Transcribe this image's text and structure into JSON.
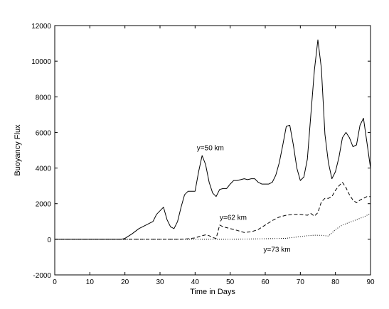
{
  "chart_data": {
    "type": "line",
    "title": "",
    "xlabel": "Time in Days",
    "ylabel": "Buoyancy Flux",
    "xlim": [
      0,
      90
    ],
    "ylim": [
      -2000,
      12000
    ],
    "xticks": [
      0,
      10,
      20,
      30,
      40,
      50,
      60,
      70,
      80,
      90
    ],
    "yticks": [
      -2000,
      0,
      2000,
      4000,
      6000,
      8000,
      10000,
      12000
    ],
    "grid": false,
    "legend": "none",
    "series": [
      {
        "label": "y=50 km",
        "style": "solid",
        "x": [
          0,
          19,
          20,
          22,
          24,
          26,
          28,
          29,
          31,
          32,
          33,
          34,
          35,
          36,
          37,
          38,
          40,
          41,
          42,
          43,
          44,
          45,
          46,
          47,
          48,
          49,
          50,
          51,
          52,
          53,
          54,
          55,
          56,
          57,
          58,
          59,
          60,
          61,
          62,
          63,
          64,
          65,
          66,
          67,
          68,
          69,
          70,
          71,
          72,
          73,
          74,
          75,
          76,
          77,
          78,
          79,
          80,
          81,
          82,
          83,
          84,
          85,
          86,
          87,
          88,
          89,
          90
        ],
        "y": [
          0,
          0,
          50,
          300,
          600,
          800,
          1000,
          1400,
          1800,
          1100,
          700,
          600,
          1000,
          1800,
          2500,
          2700,
          2700,
          3800,
          4700,
          4200,
          3200,
          2600,
          2400,
          2800,
          2850,
          2850,
          3100,
          3300,
          3300,
          3350,
          3400,
          3350,
          3400,
          3400,
          3200,
          3100,
          3100,
          3100,
          3200,
          3600,
          4300,
          5300,
          6350,
          6400,
          5300,
          4000,
          3300,
          3500,
          4500,
          7000,
          9500,
          11200,
          9600,
          5900,
          4300,
          3400,
          3800,
          4600,
          5700,
          6000,
          5700,
          5200,
          5300,
          6400,
          6800,
          5400,
          4000
        ]
      },
      {
        "label": "y=62 km",
        "style": "dashed",
        "x": [
          0,
          36,
          38,
          40,
          42,
          43,
          44,
          45,
          46,
          47,
          48,
          50,
          52,
          54,
          56,
          58,
          60,
          62,
          64,
          66,
          68,
          70,
          72,
          73,
          74,
          75,
          76,
          77,
          78,
          79,
          80,
          81,
          82,
          83,
          84,
          85,
          86,
          87,
          88,
          89,
          90
        ],
        "y": [
          0,
          0,
          30,
          80,
          200,
          250,
          200,
          100,
          50,
          800,
          700,
          600,
          500,
          380,
          420,
          550,
          800,
          1050,
          1250,
          1350,
          1400,
          1400,
          1350,
          1450,
          1300,
          1500,
          2100,
          2300,
          2300,
          2400,
          2750,
          3000,
          3200,
          2900,
          2500,
          2200,
          2050,
          2200,
          2300,
          2400,
          2400
        ]
      },
      {
        "label": "y=73 km",
        "style": "dotted",
        "x": [
          0,
          50,
          60,
          66,
          70,
          72,
          74,
          76,
          78,
          79,
          80,
          82,
          84,
          86,
          88,
          90
        ],
        "y": [
          0,
          0,
          30,
          60,
          150,
          200,
          230,
          220,
          180,
          350,
          550,
          800,
          950,
          1100,
          1250,
          1450
        ]
      }
    ],
    "annotations": [
      {
        "text": "y=50 km",
        "x": 40.5,
        "y": 5000
      },
      {
        "text": "y=62 km",
        "x": 47,
        "y": 1100
      },
      {
        "text": "y=73 km",
        "x": 59.5,
        "y": -700
      }
    ]
  }
}
